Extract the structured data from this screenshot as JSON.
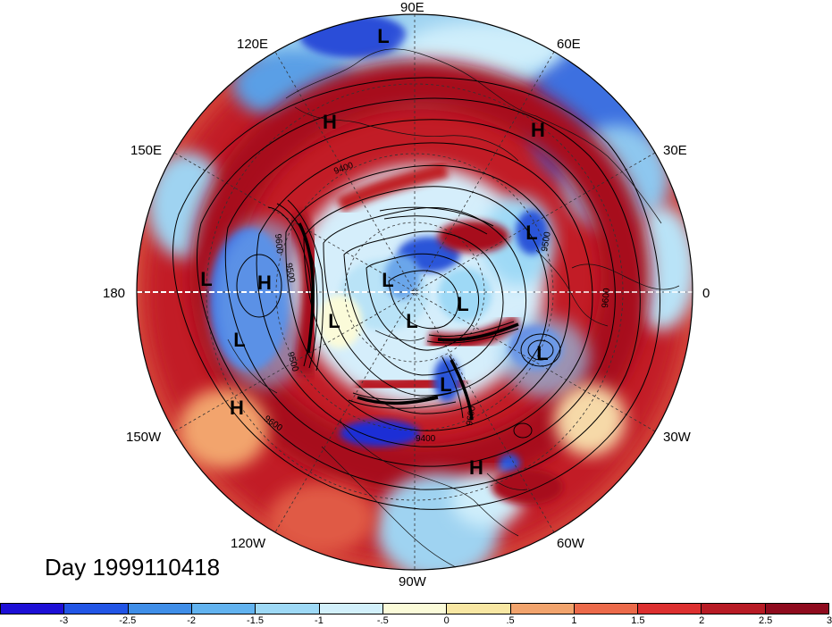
{
  "title": "Day 1999110418",
  "longitude_labels": {
    "lon_90E": "90E",
    "lon_60E": "60E",
    "lon_30E": "30E",
    "lon_0": "0",
    "lon_30W": "30W",
    "lon_60W": "60W",
    "lon_90W": "90W",
    "lon_120W": "120W",
    "lon_150W": "150W",
    "lon_180": "180",
    "lon_150E": "150E",
    "lon_120E": "120E"
  },
  "pressure_centers": [
    {
      "label": "L",
      "lon": "90E"
    },
    {
      "label": "H",
      "lon": "120E"
    },
    {
      "label": "H",
      "lon": "60E"
    },
    {
      "label": "L",
      "lon": "30E"
    },
    {
      "label": "L",
      "lon": "180"
    },
    {
      "label": "H",
      "lon": "180"
    },
    {
      "label": "L",
      "lon": "165W"
    },
    {
      "label": "L",
      "lon": "central"
    },
    {
      "label": "L",
      "lon": "central"
    },
    {
      "label": "L",
      "lon": "central"
    },
    {
      "label": "L",
      "lon": "central"
    },
    {
      "label": "L",
      "lon": "0"
    },
    {
      "label": "L",
      "lon": "45W"
    },
    {
      "label": "H",
      "lon": "150W"
    },
    {
      "label": "H",
      "lon": "75W"
    }
  ],
  "contour_labels": [
    "9400",
    "9500",
    "9500",
    "9500",
    "9600",
    "9600",
    "9600",
    "9600",
    "9400"
  ],
  "colorbar": {
    "colors": [
      "#1d0fd6",
      "#2255e6",
      "#3f8ee8",
      "#62b3f0",
      "#9ed9f6",
      "#d2f0fb",
      "#fbfbd9",
      "#f8e7a3",
      "#f2a46d",
      "#ec6a4a",
      "#dd3030",
      "#b81b25",
      "#8f0b1e"
    ],
    "ticks": [
      "-3",
      "-2.5",
      "-2",
      "-1.5",
      "-1",
      "-.5",
      "0",
      ".5",
      "1",
      "1.5",
      "2",
      "2.5",
      "3"
    ]
  }
}
